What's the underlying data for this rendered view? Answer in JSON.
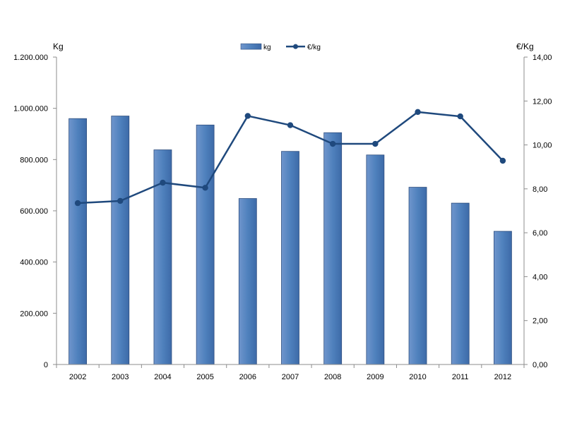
{
  "chart_data": {
    "type": "bar",
    "categories": [
      "2002",
      "2003",
      "2004",
      "2005",
      "2006",
      "2007",
      "2008",
      "2009",
      "2010",
      "2011",
      "2012"
    ],
    "series": [
      {
        "name": "kg",
        "type": "bar",
        "axis": "left",
        "values": [
          960000,
          970000,
          838000,
          935000,
          648000,
          832000,
          905000,
          818000,
          692000,
          630000,
          520000
        ]
      },
      {
        "name": "€/kg",
        "type": "line",
        "axis": "right",
        "values": [
          7.35,
          7.45,
          8.28,
          8.05,
          11.32,
          10.9,
          10.05,
          10.05,
          11.5,
          11.3,
          9.28
        ]
      }
    ],
    "left_axis": {
      "label": "Kg",
      "ylim": [
        0,
        1200000
      ],
      "ticks": [
        "0",
        "200.000",
        "400.000",
        "600.000",
        "800.000",
        "1.000.000",
        "1.200.000"
      ]
    },
    "right_axis": {
      "label": "€/Kg",
      "ylim": [
        0,
        14
      ],
      "ticks": [
        "0,00",
        "2,00",
        "4,00",
        "6,00",
        "8,00",
        "10,00",
        "12,00",
        "14,00"
      ]
    },
    "legend_position": "top-center",
    "grid": false,
    "colors": {
      "bar": "#4f81bd",
      "bar_edge": "#2f4f7f",
      "line": "#1f497d"
    }
  }
}
